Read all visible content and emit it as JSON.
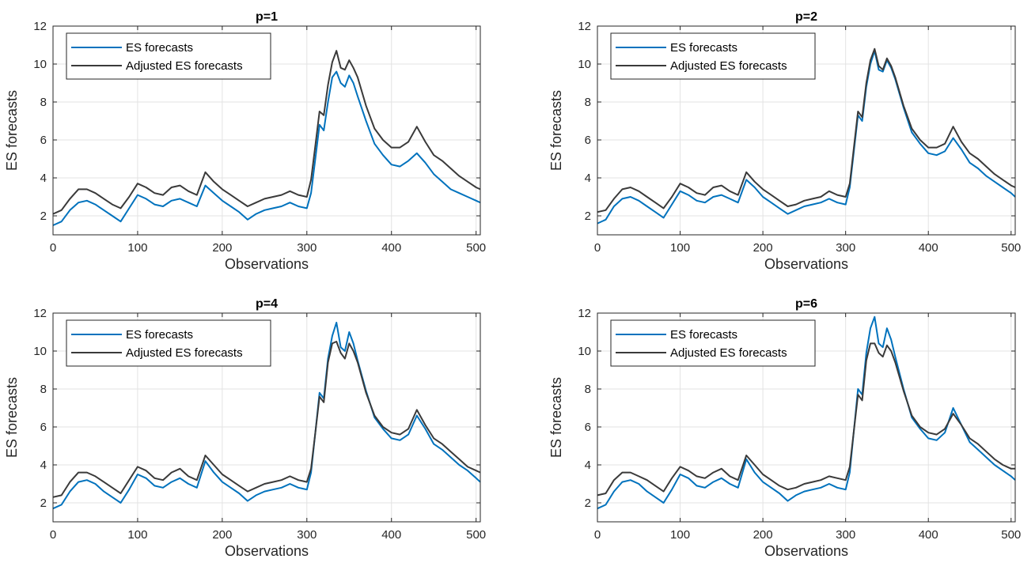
{
  "colors": {
    "es": "#0072BD",
    "adjusted": "#3a3a3a"
  },
  "chart_data": [
    {
      "type": "line",
      "title": "p=1",
      "xlabel": "Observations",
      "ylabel": "ES forecasts",
      "xlim": [
        0,
        505
      ],
      "ylim": [
        1,
        12
      ],
      "xticks": [
        0,
        100,
        200,
        300,
        400,
        500
      ],
      "yticks": [
        2,
        4,
        6,
        8,
        10,
        12
      ],
      "grid": true,
      "legend_position": "top-left",
      "x": [
        0,
        10,
        20,
        30,
        40,
        50,
        60,
        70,
        80,
        90,
        100,
        110,
        120,
        130,
        140,
        150,
        160,
        170,
        180,
        190,
        200,
        210,
        220,
        230,
        240,
        250,
        260,
        270,
        280,
        290,
        300,
        305,
        310,
        315,
        320,
        325,
        330,
        335,
        340,
        345,
        350,
        355,
        360,
        370,
        380,
        390,
        400,
        410,
        420,
        430,
        440,
        450,
        460,
        470,
        480,
        490,
        500,
        505
      ],
      "series": [
        {
          "name": "ES forecasts",
          "values": [
            1.5,
            1.7,
            2.3,
            2.7,
            2.8,
            2.6,
            2.3,
            2.0,
            1.7,
            2.4,
            3.1,
            2.9,
            2.6,
            2.5,
            2.8,
            2.9,
            2.7,
            2.5,
            3.6,
            3.2,
            2.8,
            2.5,
            2.2,
            1.8,
            2.1,
            2.3,
            2.4,
            2.5,
            2.7,
            2.5,
            2.4,
            3.2,
            5.0,
            6.8,
            6.5,
            8.0,
            9.3,
            9.6,
            9.0,
            8.8,
            9.4,
            9.0,
            8.3,
            7.0,
            5.8,
            5.2,
            4.7,
            4.6,
            4.9,
            5.3,
            4.8,
            4.2,
            3.8,
            3.4,
            3.2,
            3.0,
            2.8,
            2.7
          ]
        },
        {
          "name": "Adjusted ES forecasts",
          "values": [
            2.1,
            2.3,
            2.9,
            3.4,
            3.4,
            3.2,
            2.9,
            2.6,
            2.4,
            3.0,
            3.7,
            3.5,
            3.2,
            3.1,
            3.5,
            3.6,
            3.3,
            3.1,
            4.3,
            3.8,
            3.4,
            3.1,
            2.8,
            2.5,
            2.7,
            2.9,
            3.0,
            3.1,
            3.3,
            3.1,
            3.0,
            3.9,
            5.7,
            7.5,
            7.3,
            8.9,
            10.1,
            10.7,
            9.8,
            9.7,
            10.2,
            9.8,
            9.3,
            7.8,
            6.6,
            6.0,
            5.6,
            5.6,
            5.9,
            6.7,
            5.9,
            5.2,
            4.9,
            4.5,
            4.1,
            3.8,
            3.5,
            3.4
          ]
        }
      ]
    },
    {
      "type": "line",
      "title": "p=2",
      "xlabel": "Observations",
      "ylabel": "ES forecasts",
      "xlim": [
        0,
        505
      ],
      "ylim": [
        1,
        12
      ],
      "xticks": [
        0,
        100,
        200,
        300,
        400,
        500
      ],
      "yticks": [
        2,
        4,
        6,
        8,
        10,
        12
      ],
      "grid": true,
      "legend_position": "top-left",
      "x": [
        0,
        10,
        20,
        30,
        40,
        50,
        60,
        70,
        80,
        90,
        100,
        110,
        120,
        130,
        140,
        150,
        160,
        170,
        180,
        190,
        200,
        210,
        220,
        230,
        240,
        250,
        260,
        270,
        280,
        290,
        300,
        305,
        310,
        315,
        320,
        325,
        330,
        335,
        340,
        345,
        350,
        355,
        360,
        370,
        380,
        390,
        400,
        410,
        420,
        430,
        440,
        450,
        460,
        470,
        480,
        490,
        500,
        505
      ],
      "series": [
        {
          "name": "ES forecasts",
          "values": [
            1.6,
            1.8,
            2.5,
            2.9,
            3.0,
            2.8,
            2.5,
            2.2,
            1.9,
            2.6,
            3.3,
            3.1,
            2.8,
            2.7,
            3.0,
            3.1,
            2.9,
            2.7,
            3.9,
            3.5,
            3.0,
            2.7,
            2.4,
            2.1,
            2.3,
            2.5,
            2.6,
            2.7,
            2.9,
            2.7,
            2.6,
            3.5,
            5.4,
            7.3,
            7.0,
            8.8,
            10.0,
            10.7,
            9.7,
            9.6,
            10.2,
            9.8,
            9.2,
            7.7,
            6.4,
            5.8,
            5.3,
            5.2,
            5.4,
            6.1,
            5.5,
            4.8,
            4.5,
            4.1,
            3.8,
            3.5,
            3.2,
            3.0
          ]
        },
        {
          "name": "Adjusted ES forecasts",
          "values": [
            2.2,
            2.3,
            2.9,
            3.4,
            3.5,
            3.3,
            3.0,
            2.7,
            2.4,
            3.0,
            3.7,
            3.5,
            3.2,
            3.1,
            3.5,
            3.6,
            3.3,
            3.1,
            4.3,
            3.8,
            3.4,
            3.1,
            2.8,
            2.5,
            2.6,
            2.8,
            2.9,
            3.0,
            3.3,
            3.1,
            3.0,
            3.7,
            5.6,
            7.5,
            7.2,
            9.0,
            10.2,
            10.8,
            9.9,
            9.7,
            10.3,
            9.9,
            9.3,
            7.8,
            6.6,
            6.0,
            5.6,
            5.6,
            5.8,
            6.7,
            5.9,
            5.3,
            5.0,
            4.6,
            4.2,
            3.9,
            3.6,
            3.5
          ]
        }
      ]
    },
    {
      "type": "line",
      "title": "p=4",
      "xlabel": "Observations",
      "ylabel": "ES forecasts",
      "xlim": [
        0,
        505
      ],
      "ylim": [
        1,
        12
      ],
      "xticks": [
        0,
        100,
        200,
        300,
        400,
        500
      ],
      "yticks": [
        2,
        4,
        6,
        8,
        10,
        12
      ],
      "grid": true,
      "legend_position": "top-left",
      "x": [
        0,
        10,
        20,
        30,
        40,
        50,
        60,
        70,
        80,
        90,
        100,
        110,
        120,
        130,
        140,
        150,
        160,
        170,
        180,
        190,
        200,
        210,
        220,
        230,
        240,
        250,
        260,
        270,
        280,
        290,
        300,
        305,
        310,
        315,
        320,
        325,
        330,
        335,
        340,
        345,
        350,
        355,
        360,
        370,
        380,
        390,
        400,
        410,
        420,
        430,
        440,
        450,
        460,
        470,
        480,
        490,
        500,
        505
      ],
      "series": [
        {
          "name": "ES forecasts",
          "values": [
            1.7,
            1.9,
            2.6,
            3.1,
            3.2,
            3.0,
            2.6,
            2.3,
            2.0,
            2.7,
            3.5,
            3.3,
            2.9,
            2.8,
            3.1,
            3.3,
            3.0,
            2.8,
            4.2,
            3.6,
            3.1,
            2.8,
            2.5,
            2.1,
            2.4,
            2.6,
            2.7,
            2.8,
            3.0,
            2.8,
            2.7,
            3.6,
            5.7,
            7.8,
            7.5,
            9.6,
            10.8,
            11.5,
            10.2,
            10.0,
            11.0,
            10.4,
            9.5,
            7.9,
            6.5,
            5.9,
            5.4,
            5.3,
            5.6,
            6.6,
            5.9,
            5.1,
            4.8,
            4.4,
            4.0,
            3.7,
            3.3,
            3.1
          ]
        },
        {
          "name": "Adjusted ES forecasts",
          "values": [
            2.3,
            2.4,
            3.1,
            3.6,
            3.6,
            3.4,
            3.1,
            2.8,
            2.5,
            3.2,
            3.9,
            3.7,
            3.3,
            3.2,
            3.6,
            3.8,
            3.4,
            3.2,
            4.5,
            4.0,
            3.5,
            3.2,
            2.9,
            2.6,
            2.8,
            3.0,
            3.1,
            3.2,
            3.4,
            3.2,
            3.1,
            3.8,
            5.7,
            7.6,
            7.3,
            9.4,
            10.4,
            10.5,
            9.9,
            9.6,
            10.4,
            10.0,
            9.4,
            7.8,
            6.6,
            6.0,
            5.7,
            5.6,
            5.9,
            6.9,
            6.1,
            5.4,
            5.1,
            4.7,
            4.3,
            3.9,
            3.7,
            3.6
          ]
        }
      ]
    },
    {
      "type": "line",
      "title": "p=6",
      "xlabel": "Observations",
      "ylabel": "ES forecasts",
      "xlim": [
        0,
        505
      ],
      "ylim": [
        1,
        12
      ],
      "xticks": [
        0,
        100,
        200,
        300,
        400,
        500
      ],
      "yticks": [
        2,
        4,
        6,
        8,
        10,
        12
      ],
      "grid": true,
      "legend_position": "top-left",
      "x": [
        0,
        10,
        20,
        30,
        40,
        50,
        60,
        70,
        80,
        90,
        100,
        110,
        120,
        130,
        140,
        150,
        160,
        170,
        180,
        190,
        200,
        210,
        220,
        230,
        240,
        250,
        260,
        270,
        280,
        290,
        300,
        305,
        310,
        315,
        320,
        325,
        330,
        335,
        340,
        345,
        350,
        355,
        360,
        370,
        380,
        390,
        400,
        410,
        420,
        430,
        440,
        450,
        460,
        470,
        480,
        490,
        500,
        505
      ],
      "series": [
        {
          "name": "ES forecasts",
          "values": [
            1.7,
            1.9,
            2.6,
            3.1,
            3.2,
            3.0,
            2.6,
            2.3,
            2.0,
            2.7,
            3.5,
            3.3,
            2.9,
            2.8,
            3.1,
            3.3,
            3.0,
            2.8,
            4.3,
            3.6,
            3.1,
            2.8,
            2.5,
            2.1,
            2.4,
            2.6,
            2.7,
            2.8,
            3.0,
            2.8,
            2.7,
            3.6,
            5.8,
            8.0,
            7.7,
            9.9,
            11.2,
            11.8,
            10.4,
            10.2,
            11.2,
            10.6,
            9.7,
            8.0,
            6.5,
            5.9,
            5.4,
            5.3,
            5.7,
            7.0,
            6.1,
            5.2,
            4.8,
            4.4,
            4.0,
            3.7,
            3.4,
            3.2
          ]
        },
        {
          "name": "Adjusted ES forecasts",
          "values": [
            2.4,
            2.5,
            3.2,
            3.6,
            3.6,
            3.4,
            3.2,
            2.9,
            2.6,
            3.3,
            3.9,
            3.7,
            3.4,
            3.3,
            3.6,
            3.8,
            3.4,
            3.2,
            4.5,
            4.0,
            3.5,
            3.2,
            2.9,
            2.7,
            2.8,
            3.0,
            3.1,
            3.2,
            3.4,
            3.3,
            3.2,
            3.9,
            5.8,
            7.7,
            7.4,
            9.5,
            10.4,
            10.4,
            9.9,
            9.7,
            10.3,
            10.0,
            9.4,
            7.9,
            6.6,
            6.0,
            5.7,
            5.6,
            5.9,
            6.7,
            6.1,
            5.4,
            5.1,
            4.7,
            4.3,
            4.0,
            3.8,
            3.8
          ]
        }
      ]
    }
  ]
}
